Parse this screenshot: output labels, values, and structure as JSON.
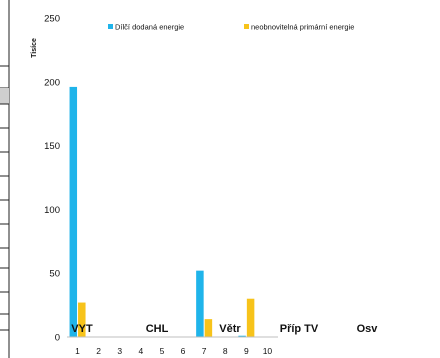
{
  "chart_data": {
    "type": "bar",
    "ylabel": "Tisíce",
    "ylim": [
      0,
      250
    ],
    "yticks": [
      0,
      50,
      100,
      150,
      200,
      250
    ],
    "categories": [
      "1",
      "2",
      "3",
      "4",
      "5",
      "6",
      "7",
      "8",
      "9",
      "10"
    ],
    "group_labels": [
      "VYT",
      "CHL",
      "Větr",
      "Příp TV",
      "Osv"
    ],
    "legend_position": "top",
    "grid": false,
    "series": [
      {
        "name": "Dílčí dodaná energie",
        "color": "#1fb4ea",
        "values": [
          196,
          0,
          0,
          0,
          0,
          0,
          52,
          0,
          1,
          0
        ]
      },
      {
        "name": "neobnovitelná primární energie",
        "color": "#f7c31a",
        "values": [
          27,
          0,
          0,
          0,
          0,
          0,
          14,
          0,
          30,
          0
        ]
      }
    ]
  }
}
